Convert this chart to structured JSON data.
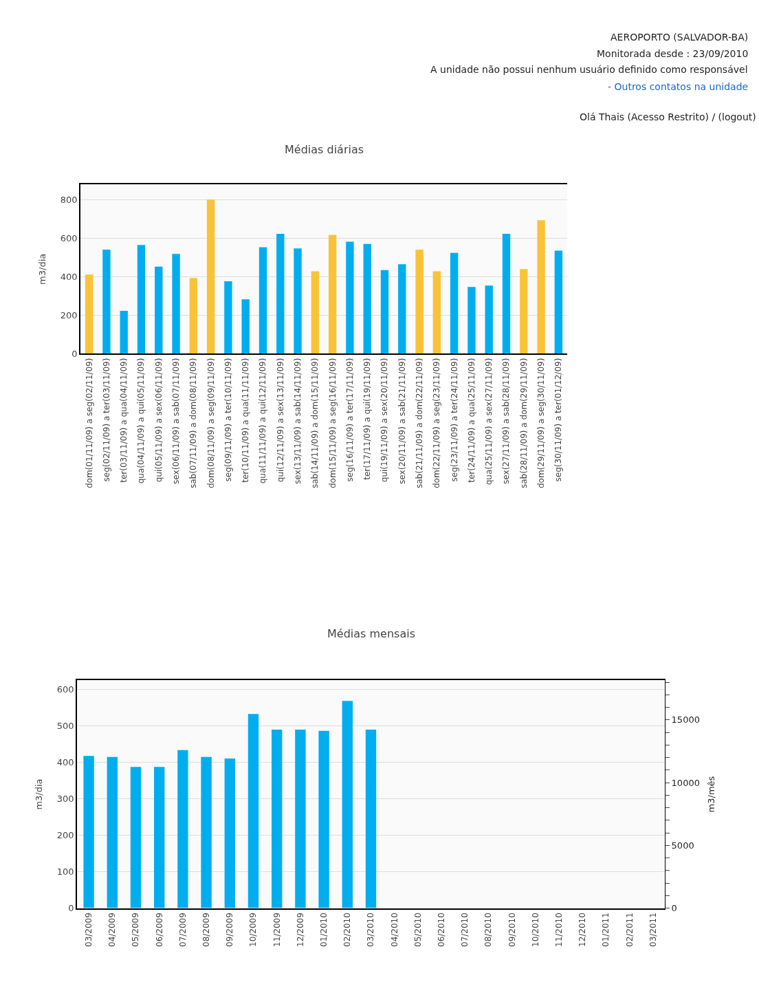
{
  "chart_data": [
    {
      "type": "bar",
      "title": "Médias diárias",
      "ylabel": "m3/dia",
      "annotations": [
        "AEROPORTO (SALVADOR-BA)",
        "Monitorada desde : 23/09/2010",
        "A unidade não possui nenhum usuário definido como responsável",
        "- Outros contatos na unidade",
        "Olá Thais (Acesso Restrito) / (logout)"
      ],
      "categories": [
        "dom(01/11/09) a seg(02/11/09)",
        "seg(02/11/09) a ter(03/11/09)",
        "ter(03/11/09) a qua(04/11/09)",
        "qua(04/11/09) a qui(05/11/09)",
        "qui(05/11/09) a sex(06/11/09)",
        "sex(06/11/09) a sab(07/11/09)",
        "sab(07/11/09) a dom(08/11/09)",
        "dom(08/11/09) a seg(09/11/09)",
        "seg(09/11/09) a ter(10/11/09)",
        "ter(10/11/09) a qua(11/11/09)",
        "qua(11/11/09) a qui(12/11/09)",
        "qui(12/11/09) a sex(13/11/09)",
        "sex(13/11/09) a sab(14/11/09)",
        "sab(14/11/09) a dom(15/11/09)",
        "dom(15/11/09) a seg(16/11/09)",
        "seg(16/11/09) a ter(17/11/09)",
        "ter(17/11/09) a qui(19/11/09)",
        "qui(19/11/09) a sex(20/11/09)",
        "sex(20/11/09) a sab(21/11/09)",
        "sab(21/11/09) a dom(22/11/09)",
        "dom(22/11/09) a seg(23/11/09)",
        "seg(23/11/09) a ter(24/11/09)",
        "ter(24/11/09) a qua(25/11/09)",
        "qua(25/11/09) a sex(27/11/09)",
        "sex(27/11/09) a sab(28/11/09)",
        "sab(28/11/09) a dom(29/11/09)",
        "dom(29/11/09) a seg(30/11/09)",
        "seg(30/11/09) a ter(01/12/09)"
      ],
      "values": [
        411,
        540,
        222,
        564,
        452,
        518,
        393,
        800,
        376,
        282,
        553,
        622,
        546,
        428,
        617,
        581,
        570,
        434,
        464,
        540,
        428,
        523,
        346,
        353,
        622,
        439,
        693,
        535
      ],
      "colors": [
        "#fac337",
        "#00aeef",
        "#00aeef",
        "#00aeef",
        "#00aeef",
        "#00aeef",
        "#fac337",
        "#fac337",
        "#00aeef",
        "#00aeef",
        "#00aeef",
        "#00aeef",
        "#00aeef",
        "#fac337",
        "#fac337",
        "#00aeef",
        "#00aeef",
        "#00aeef",
        "#00aeef",
        "#fac337",
        "#fac337",
        "#00aeef",
        "#00aeef",
        "#00aeef",
        "#00aeef",
        "#fac337",
        "#fac337",
        "#00aeef"
      ],
      "ylim": [
        0,
        878
      ],
      "yticks": [
        0,
        200,
        400,
        600,
        800
      ],
      "grid": "y"
    },
    {
      "type": "bar",
      "title": "Médias mensais",
      "ylabel": "m3/dia",
      "y2label": "m3/mês",
      "categories": [
        "03/2009",
        "04/2009",
        "05/2009",
        "06/2009",
        "07/2009",
        "08/2009",
        "09/2009",
        "10/2009",
        "11/2009",
        "12/2009",
        "01/2010",
        "02/2010",
        "03/2010",
        "04/2010",
        "05/2010",
        "06/2010",
        "07/2010",
        "08/2010",
        "09/2010",
        "10/2010",
        "11/2010",
        "12/2010",
        "01/2011",
        "02/2011",
        "03/2011"
      ],
      "series": [
        {
          "color": "#00aeef",
          "values": [
            417,
            414,
            387,
            387,
            433,
            414,
            410,
            532,
            489,
            489,
            486,
            568,
            489,
            null,
            null,
            null,
            null,
            null,
            null,
            null,
            null,
            null,
            null,
            null,
            null
          ]
        }
      ],
      "ylim": [
        0,
        624
      ],
      "yticks": [
        0,
        100,
        200,
        300,
        400,
        500,
        600
      ],
      "y2lim": [
        0,
        18150
      ],
      "y2ticks": [
        0,
        {
          "value": 1000,
          "label": null
        },
        {
          "value": 2000,
          "label": null
        },
        {
          "value": 3000,
          "label": null
        },
        {
          "value": 4000,
          "label": null
        },
        5000,
        {
          "value": 6000,
          "label": null
        },
        {
          "value": 7000,
          "label": null
        },
        {
          "value": 8000,
          "label": null
        },
        {
          "value": 9000,
          "label": null
        },
        10000,
        {
          "value": 11000,
          "label": null
        },
        {
          "value": 12000,
          "label": null
        },
        {
          "value": 13000,
          "label": null
        },
        {
          "value": 14000,
          "label": null
        },
        15000,
        {
          "value": 16000,
          "label": null
        },
        {
          "value": 17000,
          "label": null
        },
        {
          "value": 18000,
          "label": null
        }
      ],
      "grid": "y"
    }
  ]
}
